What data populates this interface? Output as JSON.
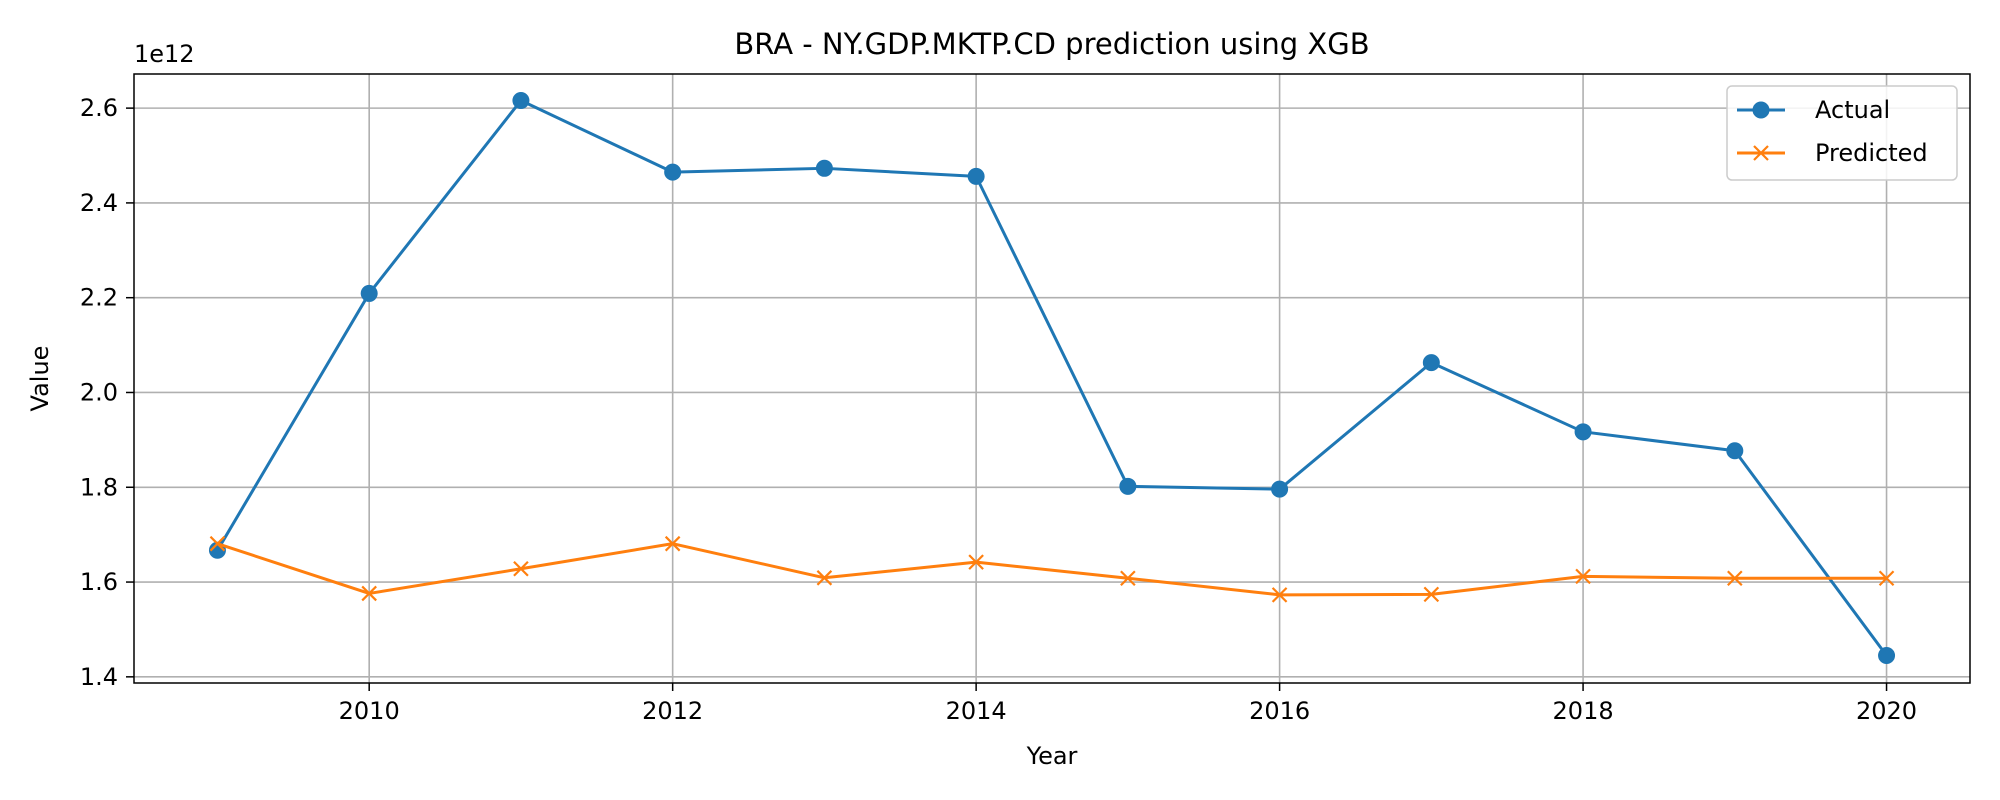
{
  "chart_data": {
    "type": "line",
    "title": "BRA - NY.GDP.MKTP.CD prediction using XGB",
    "xlabel": "Year",
    "ylabel": "Value",
    "y_offset_label": "1e12",
    "xlim": [
      2008.45,
      2020.55
    ],
    "ylim": [
      1.387,
      2.672
    ],
    "x_ticks": [
      2010,
      2012,
      2014,
      2016,
      2018,
      2020
    ],
    "y_ticks": [
      1.4,
      1.6,
      1.8,
      2.0,
      2.2,
      2.4,
      2.6
    ],
    "y_tick_labels": [
      "1.4",
      "1.6",
      "1.8",
      "2.0",
      "2.2",
      "2.4",
      "2.6"
    ],
    "grid": true,
    "legend_position": "top-right",
    "x": [
      2009,
      2010,
      2011,
      2012,
      2013,
      2014,
      2015,
      2016,
      2017,
      2018,
      2019,
      2020
    ],
    "series": [
      {
        "name": "Actual",
        "color": "#1f77b4",
        "marker": "circle",
        "values": [
          1.667,
          2.209,
          2.616,
          2.465,
          2.473,
          2.456,
          1.802,
          1.796,
          2.063,
          1.917,
          1.877,
          1.445
        ]
      },
      {
        "name": "Predicted",
        "color": "#ff7f0e",
        "marker": "x",
        "values": [
          1.681,
          1.576,
          1.628,
          1.681,
          1.609,
          1.642,
          1.608,
          1.573,
          1.574,
          1.612,
          1.608,
          1.608
        ]
      }
    ]
  }
}
